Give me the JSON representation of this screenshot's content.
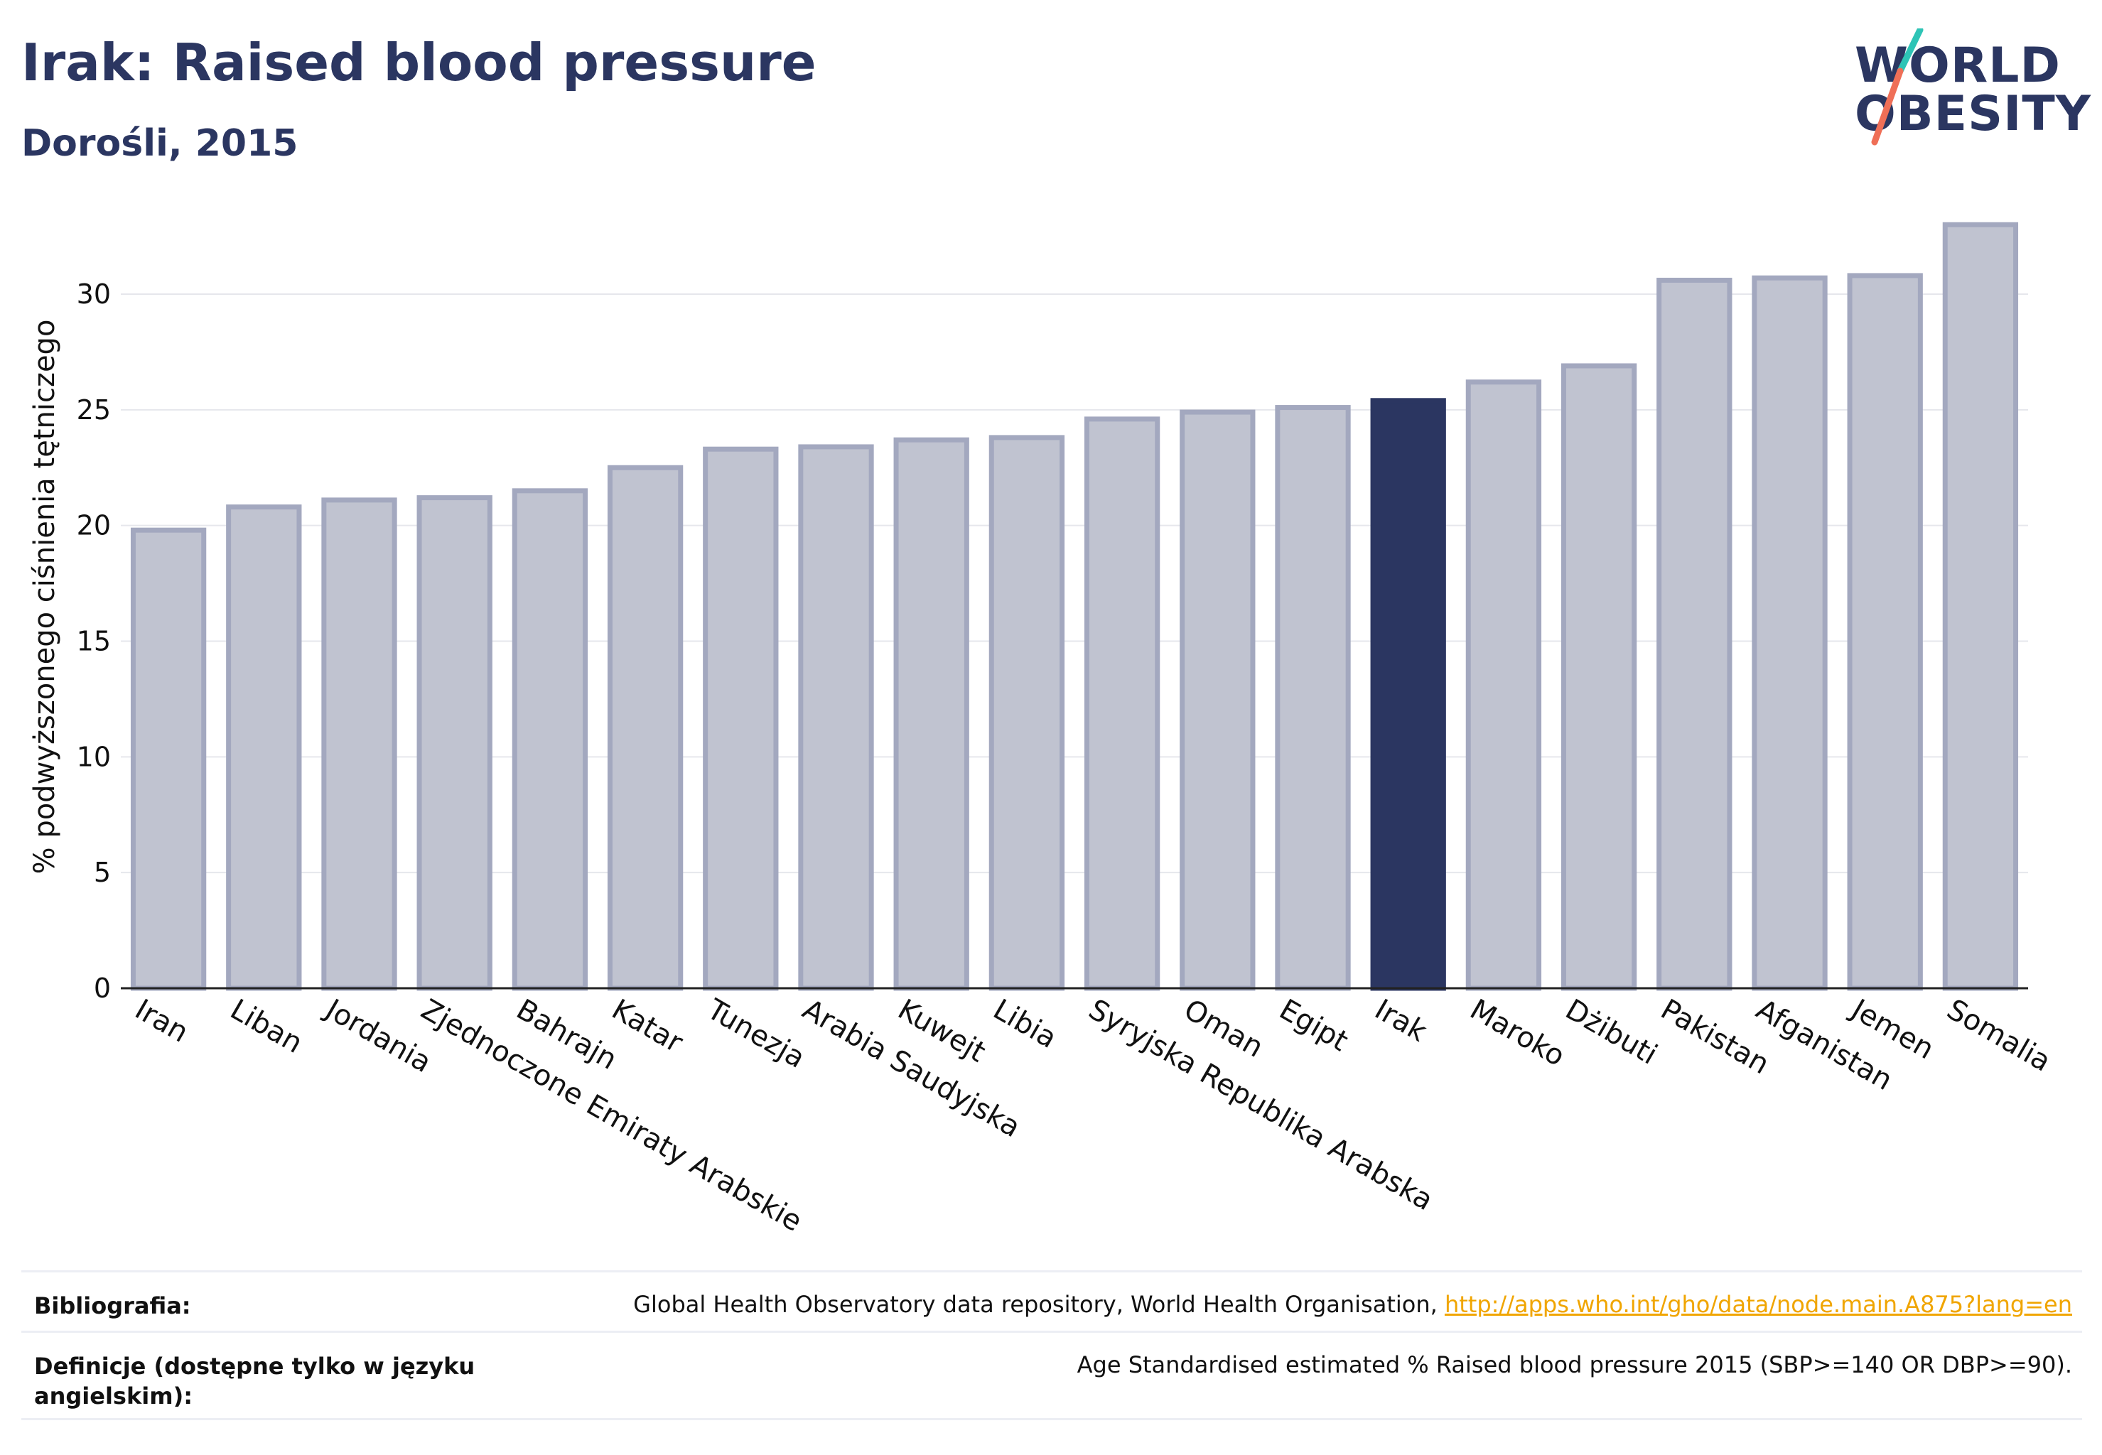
{
  "header": {
    "title": "Irak: Raised blood pressure",
    "subtitle": "Dorośli, 2015"
  },
  "logo": {
    "line1": "WORLD",
    "line2": "OBESITY",
    "colors": {
      "text": "#2b3661",
      "slash_top": "#2ec4b6",
      "slash_bottom": "#ef6f57"
    }
  },
  "footer": {
    "bibliography_label": "Bibliografia:",
    "bibliography_text": "Global Health Observatory data repository, World Health Organisation, ",
    "bibliography_link": "http://apps.who.int/gho/data/node.main.A875?lang=en",
    "definitions_label": "Definicje (dostępne tylko w języku angielskim):",
    "definitions_text": "Age Standardised estimated % Raised blood pressure 2015 (SBP>=140 OR DBP>=90)."
  },
  "chart_data": {
    "type": "bar",
    "title": "Irak: Raised blood pressure",
    "subtitle": "Dorośli, 2015",
    "xlabel": "",
    "ylabel": "% podwyższonego ciśnienia tętniczego",
    "ylim": [
      0,
      33.5
    ],
    "yticks": [
      0,
      5,
      10,
      15,
      20,
      25,
      30
    ],
    "grid": true,
    "legend": "none",
    "categories": [
      "Iran",
      "Liban",
      "Jordania",
      "Zjednoczone Emiraty Arabskie",
      "Bahrajn",
      "Katar",
      "Tunezja",
      "Arabia Saudyjska",
      "Kuwejt",
      "Libia",
      "Syryjska Republika Arabska",
      "Oman",
      "Egipt",
      "Irak",
      "Maroko",
      "Dżibuti",
      "Pakistan",
      "Afganistan",
      "Jemen",
      "Somalia"
    ],
    "values": [
      19.8,
      20.8,
      21.1,
      21.2,
      21.5,
      22.5,
      23.3,
      23.4,
      23.7,
      23.8,
      24.6,
      24.9,
      25.1,
      25.4,
      26.2,
      26.9,
      30.6,
      30.7,
      30.8,
      33.0
    ],
    "highlight": "Irak",
    "colors": {
      "bar": "#c0c3d0",
      "bar_border": "#a3a8bf",
      "highlight": "#2b3661",
      "grid": "#e6e7ec",
      "axis": "#222222"
    }
  }
}
